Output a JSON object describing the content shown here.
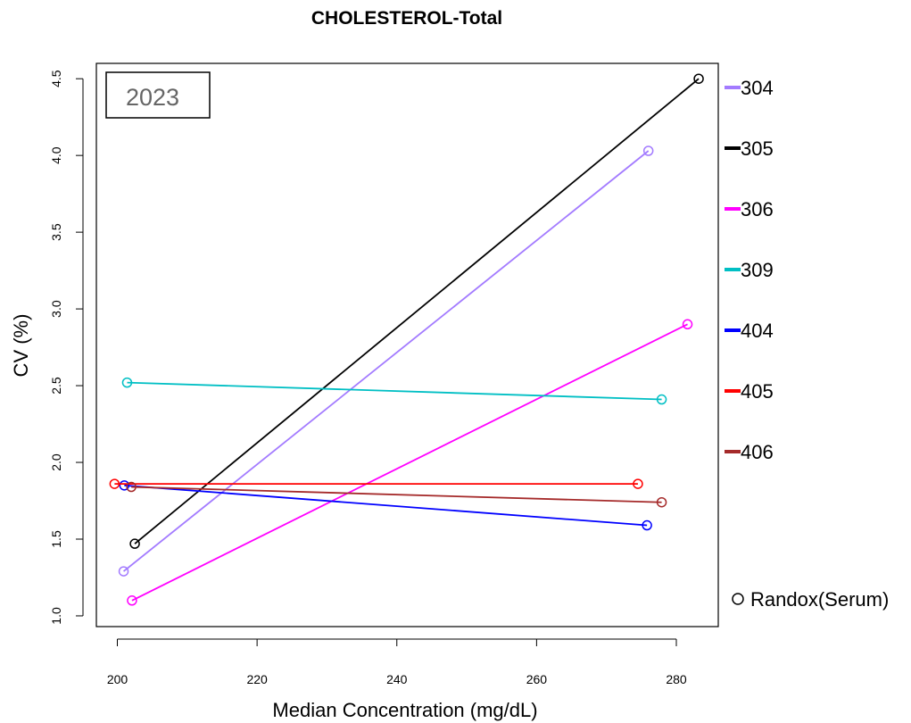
{
  "chart_data": {
    "type": "line",
    "title": "CHOLESTEROL-Total",
    "xlabel": "Median Concentration  (mg/dL)",
    "ylabel": "CV (%)",
    "xlim": [
      197,
      286
    ],
    "ylim": [
      0.93,
      4.6
    ],
    "xticks": [
      "200",
      "220",
      "240",
      "260",
      "280"
    ],
    "yticks": [
      "1.0",
      "1.5",
      "2.0",
      "2.5",
      "3.0",
      "3.5",
      "4.0",
      "4.5"
    ],
    "year_label": "2023",
    "marker_legend": "Randox(Serum)",
    "grid": false,
    "legend_position": "right",
    "series": [
      {
        "name": "304",
        "color": "#A37BFF",
        "points": [
          [
            200.9,
            1.29
          ],
          [
            276.0,
            4.03
          ]
        ]
      },
      {
        "name": "305",
        "color": "#000000",
        "points": [
          [
            202.5,
            1.47
          ],
          [
            283.2,
            4.5
          ]
        ]
      },
      {
        "name": "306",
        "color": "#FF00FF",
        "points": [
          [
            202.1,
            1.1
          ],
          [
            281.6,
            2.9
          ]
        ]
      },
      {
        "name": "309",
        "color": "#00BFC4",
        "points": [
          [
            201.4,
            2.52
          ],
          [
            277.9,
            2.41
          ]
        ]
      },
      {
        "name": "404",
        "color": "#0000FF",
        "points": [
          [
            201.0,
            1.85
          ],
          [
            275.8,
            1.59
          ]
        ]
      },
      {
        "name": "405",
        "color": "#FF0000",
        "points": [
          [
            199.6,
            1.86
          ],
          [
            274.5,
            1.86
          ]
        ]
      },
      {
        "name": "406",
        "color": "#A52A2A",
        "points": [
          [
            202.0,
            1.84
          ],
          [
            277.9,
            1.74
          ]
        ]
      }
    ]
  }
}
